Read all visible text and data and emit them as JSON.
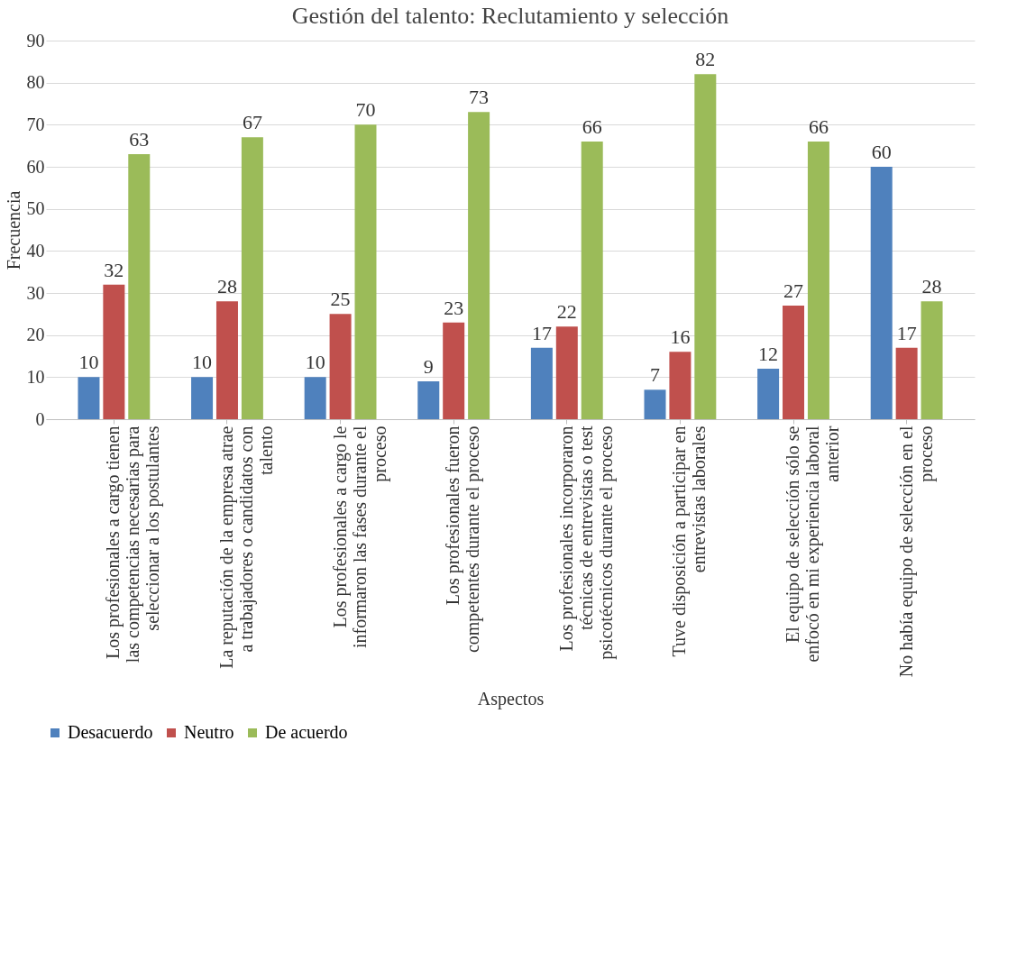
{
  "chart_data": {
    "type": "bar",
    "title": "Gestión del talento: Reclutamiento y selección",
    "xlabel": "Aspectos",
    "ylabel": "Frecuencia",
    "categories": [
      "Los profesionales a cargo tienen las competencias necesarias para seleccionar a los postulantes",
      "La reputación de la empresa atrae a trabajadores o candidatos con talento",
      "Los profesionales a cargo le informaron las fases durante el proceso",
      "Los profesionales fueron competentes durante el proceso",
      "Los profesionales incorporaron técnicas de entrevistas o test psicotécnicos durante el proceso",
      "Tuve disposición a participar en entrevistas laborales",
      "El equipo de selección sólo se enfocó en mi experiencia laboral anterior",
      "No había equipo de selección en el proceso"
    ],
    "series": [
      {
        "name": "Desacuerdo",
        "color": "#4f81bd",
        "values": [
          10,
          10,
          10,
          9,
          17,
          7,
          12,
          60
        ]
      },
      {
        "name": "Neutro",
        "color": "#c0504d",
        "values": [
          32,
          28,
          25,
          23,
          22,
          16,
          27,
          17
        ]
      },
      {
        "name": "De acuerdo",
        "color": "#9bbb59",
        "values": [
          63,
          67,
          70,
          73,
          66,
          82,
          66,
          28
        ]
      }
    ],
    "ylim": [
      0,
      90
    ],
    "yticks": [
      0,
      10,
      20,
      30,
      40,
      50,
      60,
      70,
      80,
      90
    ],
    "grid": "y",
    "legend": "bottom",
    "data_labels": true
  }
}
